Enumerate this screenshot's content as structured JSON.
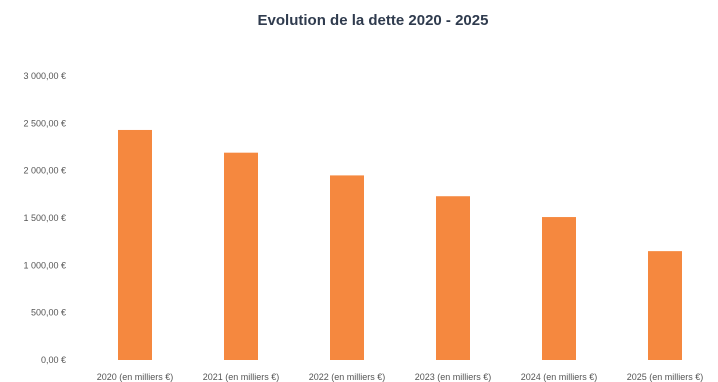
{
  "chart_data": {
    "type": "bar",
    "title": "Evolution de la dette 2020 - 2025",
    "xlabel": "",
    "ylabel": "",
    "categories": [
      "2020 (en milliers €)",
      "2021 (en milliers €)",
      "2022 (en milliers €)",
      "2023 (en milliers €)",
      "2024 (en milliers €)",
      "2025 (en milliers €)"
    ],
    "values": [
      2430,
      2190,
      1950,
      1730,
      1510,
      1150
    ],
    "ylim": [
      0,
      3000
    ],
    "yticks": [
      0,
      500,
      1000,
      1500,
      2000,
      2500,
      3000
    ],
    "ytick_labels": [
      "0,00 €",
      "500,00 €",
      "1 000,00 €",
      "1 500,00 €",
      "2 000,00 €",
      "2 500,00 €",
      "3 000,00 €"
    ],
    "grid": false,
    "legend": "none",
    "bar_color": "#f5883f"
  }
}
